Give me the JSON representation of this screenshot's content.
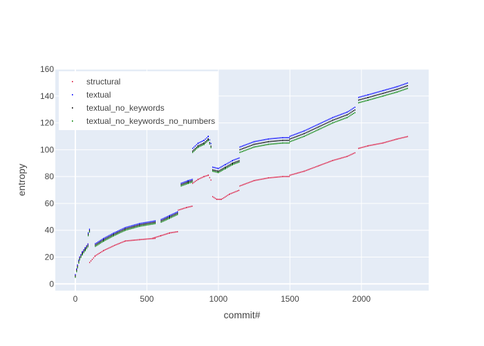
{
  "chart_data": {
    "type": "scatter",
    "xlabel": "commit#",
    "ylabel": "entropy",
    "xlim": [
      -140,
      2470
    ],
    "ylim": [
      -5,
      160
    ],
    "x_ticks": [
      0,
      500,
      1000,
      1500,
      2000
    ],
    "y_ticks": [
      0,
      20,
      40,
      60,
      80,
      100,
      120,
      140,
      160
    ],
    "grid": true,
    "legend_position": "top-left",
    "series": [
      {
        "name": "structural",
        "color": "#dc143c",
        "segments": [
          {
            "x": [
              0,
              15,
              30,
              50,
              70,
              90
            ],
            "y": [
              6,
              14,
              20,
              24,
              27,
              30
            ]
          },
          {
            "x": [
              100,
              140,
              200,
              280,
              350,
              450,
              560
            ],
            "y": [
              16,
              21,
              25,
              29,
              32,
              33,
              34
            ]
          },
          {
            "x": [
              540,
              600,
              660,
              720
            ],
            "y": [
              34,
              36,
              38,
              39
            ]
          },
          {
            "x": [
              720,
              780,
              820
            ],
            "y": [
              55,
              57,
              58
            ]
          },
          {
            "x": [
              820,
              860,
              900,
              930,
              950
            ],
            "y": [
              75,
              78,
              80,
              81,
              77
            ]
          },
          {
            "x": [
              960,
              990,
              1020,
              1080,
              1150
            ],
            "y": [
              65,
              63,
              63,
              67,
              70
            ]
          },
          {
            "x": [
              1150,
              1250,
              1350,
              1450,
              1500
            ],
            "y": [
              73,
              77,
              79,
              80,
              80
            ]
          },
          {
            "x": [
              1500,
              1600,
              1700,
              1800,
              1900,
              1960
            ],
            "y": [
              81,
              84,
              88,
              92,
              95,
              98
            ]
          },
          {
            "x": [
              1980,
              2050,
              2150,
              2250,
              2330
            ],
            "y": [
              101,
              103,
              105,
              108,
              110
            ]
          }
        ]
      },
      {
        "name": "textual",
        "color": "#0000ff",
        "segments": [
          {
            "x": [
              0,
              15,
              30,
              50,
              70,
              90
            ],
            "y": [
              7,
              14,
              20,
              24,
              27,
              30
            ]
          },
          {
            "x": [
              90,
              100
            ],
            "y": [
              38,
              41
            ]
          },
          {
            "x": [
              140,
              200,
              270,
              350,
              450,
              560
            ],
            "y": [
              30,
              34,
              38,
              42,
              45,
              47
            ]
          },
          {
            "x": [
              600,
              660,
              720
            ],
            "y": [
              48,
              51,
              54
            ]
          },
          {
            "x": [
              740,
              790,
              820
            ],
            "y": [
              75,
              77,
              78
            ]
          },
          {
            "x": [
              820,
              860,
              900,
              930,
              950
            ],
            "y": [
              101,
              105,
              107,
              110,
              104
            ]
          },
          {
            "x": [
              960,
              1000,
              1050,
              1100,
              1150
            ],
            "y": [
              87,
              86,
              89,
              92,
              94
            ]
          },
          {
            "x": [
              1150,
              1250,
              1350,
              1450,
              1500
            ],
            "y": [
              102,
              106,
              108,
              109,
              109
            ]
          },
          {
            "x": [
              1500,
              1600,
              1700,
              1800,
              1900,
              1960
            ],
            "y": [
              110,
              114,
              119,
              124,
              128,
              132
            ]
          },
          {
            "x": [
              1980,
              2050,
              2150,
              2250,
              2330
            ],
            "y": [
              139,
              141,
              144,
              147,
              150
            ]
          }
        ]
      },
      {
        "name": "textual_no_keywords",
        "color": "#000000",
        "segments": [
          {
            "x": [
              0,
              15,
              30,
              50,
              70,
              90
            ],
            "y": [
              6,
              13,
              19,
              23,
              26,
              29
            ]
          },
          {
            "x": [
              90,
              100
            ],
            "y": [
              37,
              40
            ]
          },
          {
            "x": [
              140,
              200,
              270,
              350,
              450,
              560
            ],
            "y": [
              29,
              33,
              37,
              41,
              44,
              46
            ]
          },
          {
            "x": [
              600,
              660,
              720
            ],
            "y": [
              47,
              50,
              53
            ]
          },
          {
            "x": [
              740,
              790,
              820
            ],
            "y": [
              74,
              76,
              77
            ]
          },
          {
            "x": [
              820,
              860,
              900,
              930,
              950
            ],
            "y": [
              99,
              103,
              105,
              108,
              102
            ]
          },
          {
            "x": [
              960,
              1000,
              1050,
              1100,
              1150
            ],
            "y": [
              85,
              84,
              87,
              90,
              92
            ]
          },
          {
            "x": [
              1150,
              1250,
              1350,
              1450,
              1500
            ],
            "y": [
              100,
              104,
              106,
              107,
              107
            ]
          },
          {
            "x": [
              1500,
              1600,
              1700,
              1800,
              1900,
              1960
            ],
            "y": [
              108,
              112,
              117,
              122,
              126,
              130
            ]
          },
          {
            "x": [
              1980,
              2050,
              2150,
              2250,
              2330
            ],
            "y": [
              137,
              139,
              142,
              145,
              148
            ]
          }
        ]
      },
      {
        "name": "textual_no_keywords_no_numbers",
        "color": "#008000",
        "segments": [
          {
            "x": [
              0,
              15,
              30,
              50,
              70,
              90
            ],
            "y": [
              5,
              12,
              18,
              22,
              25,
              28
            ]
          },
          {
            "x": [
              90,
              100
            ],
            "y": [
              36,
              39
            ]
          },
          {
            "x": [
              140,
              200,
              270,
              350,
              450,
              560
            ],
            "y": [
              28,
              32,
              36,
              40,
              43,
              45
            ]
          },
          {
            "x": [
              600,
              660,
              720
            ],
            "y": [
              46,
              49,
              52
            ]
          },
          {
            "x": [
              740,
              790,
              820
            ],
            "y": [
              73,
              75,
              76
            ]
          },
          {
            "x": [
              820,
              860,
              900,
              930,
              950
            ],
            "y": [
              98,
              102,
              104,
              107,
              101
            ]
          },
          {
            "x": [
              960,
              1000,
              1050,
              1100,
              1150
            ],
            "y": [
              84,
              83,
              86,
              89,
              91
            ]
          },
          {
            "x": [
              1150,
              1250,
              1350,
              1450,
              1500
            ],
            "y": [
              98,
              102,
              104,
              105,
              105
            ]
          },
          {
            "x": [
              1500,
              1600,
              1700,
              1800,
              1900,
              1960
            ],
            "y": [
              106,
              110,
              115,
              120,
              124,
              128
            ]
          },
          {
            "x": [
              1980,
              2050,
              2150,
              2250,
              2330
            ],
            "y": [
              135,
              137,
              140,
              143,
              146
            ]
          }
        ]
      }
    ]
  }
}
